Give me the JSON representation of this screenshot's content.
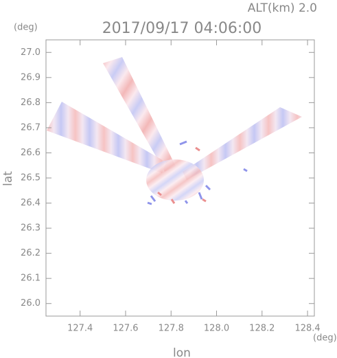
{
  "chart_data": {
    "type": "radar-field",
    "title": "2017/09/17 04:06:00",
    "annotation": "ALT(km)  2.0",
    "x_label": "lon",
    "y_label": "lat",
    "x_unit": "(deg)",
    "y_unit": "(deg)",
    "xlim": [
      127.25,
      128.43
    ],
    "ylim": [
      25.95,
      27.05
    ],
    "xticks": [
      127.4,
      127.6,
      127.8,
      {
        "value": 128.0,
        "label": "128.0"
      },
      128.2,
      128.4
    ],
    "yticks": [
      {
        "value": 26.0,
        "label": "26.0"
      },
      26.1,
      26.2,
      26.3,
      26.4,
      26.5,
      26.6,
      26.7,
      26.8,
      26.9,
      {
        "value": 27.0,
        "label": "27.0"
      }
    ]
  }
}
